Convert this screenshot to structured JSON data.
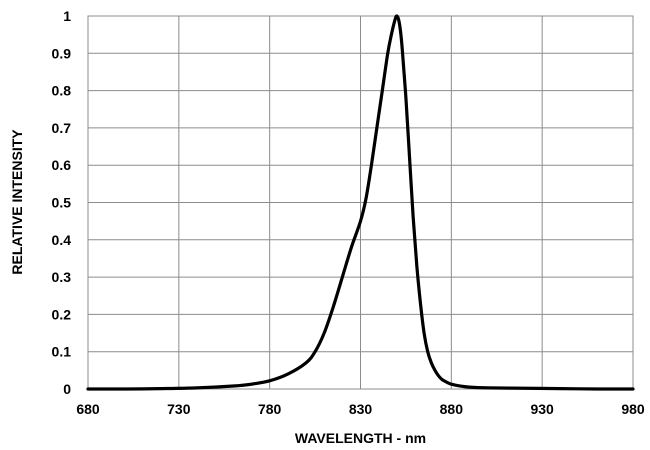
{
  "chart_data": {
    "type": "line",
    "xlabel": "WAVELENGTH - nm",
    "ylabel": "RELATIVE INTENSITY",
    "xlim": [
      680,
      980
    ],
    "ylim": [
      0,
      1
    ],
    "x_ticks": [
      "680",
      "730",
      "780",
      "830",
      "880",
      "930",
      "980"
    ],
    "y_ticks": [
      "0",
      "0.1",
      "0.2",
      "0.3",
      "0.4",
      "0.5",
      "0.6",
      "0.7",
      "0.8",
      "0.9",
      "1"
    ],
    "grid": true,
    "legend": "none",
    "series": [
      {
        "color": "#000000",
        "x": [
          680,
          700,
          720,
          740,
          760,
          770,
          780,
          790,
          800,
          805,
          810,
          815,
          820,
          825,
          830,
          833,
          836,
          839,
          842,
          845,
          847,
          849,
          850,
          851,
          852,
          853,
          855,
          857,
          859,
          861,
          863,
          865,
          867,
          869,
          871,
          873,
          875,
          878,
          880,
          885,
          890,
          900,
          920,
          940,
          960,
          980
        ],
        "y": [
          0,
          0,
          0.001,
          0.003,
          0.008,
          0.013,
          0.022,
          0.04,
          0.07,
          0.1,
          0.15,
          0.22,
          0.3,
          0.38,
          0.45,
          0.51,
          0.6,
          0.7,
          0.8,
          0.9,
          0.95,
          0.99,
          1.0,
          0.99,
          0.96,
          0.91,
          0.78,
          0.62,
          0.46,
          0.33,
          0.23,
          0.15,
          0.1,
          0.07,
          0.05,
          0.035,
          0.025,
          0.017,
          0.013,
          0.008,
          0.005,
          0.003,
          0.002,
          0.001,
          0,
          0
        ]
      }
    ]
  }
}
